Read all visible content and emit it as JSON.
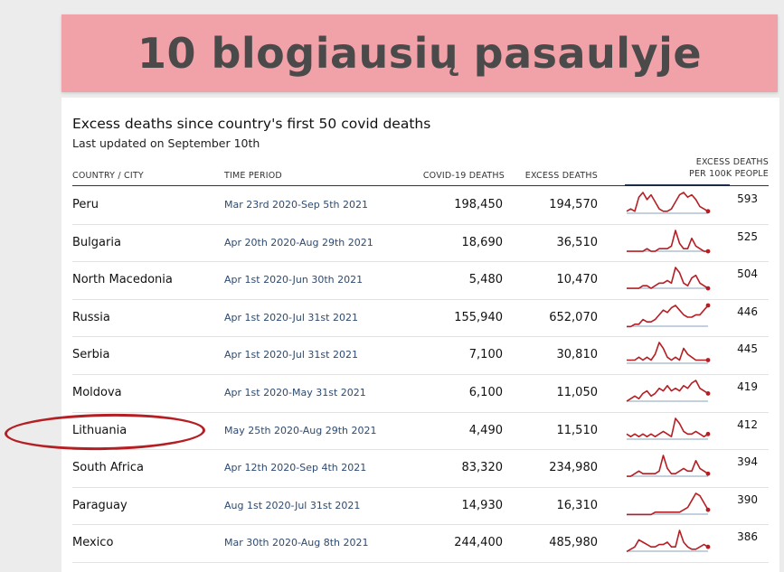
{
  "banner": {
    "title": "10 blogiausių pasaulyje"
  },
  "chart_data": {
    "type": "table",
    "title": "Excess deaths since country's first 50 covid deaths",
    "subtitle": "Last updated on September 10th",
    "columns": [
      "COUNTRY / CITY",
      "TIME PERIOD",
      "COVID-19 DEATHS",
      "EXCESS DEATHS",
      "EXCESS DEATHS PER 100K PEOPLE"
    ],
    "per100k_header": [
      "EXCESS DEATHS",
      "PER 100K PEOPLE"
    ],
    "rows": [
      {
        "country": "Peru",
        "period": "Mar 23rd 2020-Sep 5th 2021",
        "covid": "198,450",
        "excess": "194,570",
        "per100k": "593",
        "trend": [
          2,
          3,
          2,
          8,
          10,
          7,
          9,
          6,
          3,
          2,
          2,
          3,
          6,
          9,
          10,
          8,
          9,
          7,
          4,
          3,
          2
        ]
      },
      {
        "country": "Bulgaria",
        "period": "Apr 20th 2020-Aug 29th 2021",
        "covid": "18,690",
        "excess": "36,510",
        "per100k": "525",
        "trend": [
          1,
          1,
          1,
          1,
          1,
          2,
          1,
          1,
          2,
          2,
          2,
          3,
          9,
          4,
          2,
          2,
          6,
          3,
          2,
          1,
          1
        ]
      },
      {
        "country": "North Macedonia",
        "period": "Apr 1st 2020-Jun 30th 2021",
        "covid": "5,480",
        "excess": "10,470",
        "per100k": "504",
        "trend": [
          1,
          1,
          1,
          1,
          2,
          2,
          1,
          2,
          3,
          3,
          4,
          3,
          9,
          7,
          3,
          2,
          5,
          6,
          3,
          2,
          1
        ]
      },
      {
        "country": "Russia",
        "period": "Apr 1st 2020-Jul 31st 2021",
        "covid": "155,940",
        "excess": "652,070",
        "per100k": "446",
        "trend": [
          1,
          1,
          2,
          2,
          4,
          3,
          3,
          4,
          6,
          8,
          7,
          9,
          10,
          8,
          6,
          5,
          5,
          6,
          6,
          8,
          10
        ]
      },
      {
        "country": "Serbia",
        "period": "Apr 1st 2020-Jul 31st 2021",
        "covid": "7,100",
        "excess": "30,810",
        "per100k": "445",
        "trend": [
          2,
          2,
          2,
          3,
          2,
          3,
          2,
          4,
          8,
          6,
          3,
          2,
          3,
          2,
          6,
          4,
          3,
          2,
          2,
          2,
          2
        ]
      },
      {
        "country": "Moldova",
        "period": "Apr 1st 2020-May 31st 2021",
        "covid": "6,100",
        "excess": "11,050",
        "per100k": "419",
        "trend": [
          1,
          2,
          3,
          2,
          4,
          5,
          3,
          4,
          6,
          5,
          7,
          5,
          6,
          5,
          7,
          6,
          8,
          9,
          6,
          5,
          4
        ]
      },
      {
        "country": "Lithuania",
        "period": "May 25th 2020-Aug 29th 2021",
        "covid": "4,490",
        "excess": "11,510",
        "per100k": "412",
        "trend": [
          3,
          2,
          3,
          2,
          3,
          2,
          3,
          2,
          3,
          4,
          3,
          2,
          9,
          7,
          4,
          3,
          3,
          4,
          3,
          2,
          3
        ]
      },
      {
        "country": "South Africa",
        "period": "Apr 12th 2020-Sep 4th 2021",
        "covid": "83,320",
        "excess": "234,980",
        "per100k": "394",
        "trend": [
          1,
          1,
          2,
          3,
          2,
          2,
          2,
          2,
          3,
          9,
          4,
          2,
          2,
          3,
          4,
          3,
          3,
          7,
          4,
          3,
          2
        ]
      },
      {
        "country": "Paraguay",
        "period": "Aug 1st 2020-Jul 31st 2021",
        "covid": "14,930",
        "excess": "16,310",
        "per100k": "390",
        "trend": [
          1,
          1,
          1,
          1,
          1,
          1,
          1,
          2,
          2,
          2,
          2,
          2,
          2,
          2,
          3,
          4,
          7,
          10,
          9,
          6,
          3
        ]
      },
      {
        "country": "Mexico",
        "period": "Mar 30th 2020-Aug 8th 2021",
        "covid": "244,400",
        "excess": "485,980",
        "per100k": "386",
        "trend": [
          1,
          2,
          3,
          6,
          5,
          4,
          3,
          3,
          4,
          4,
          5,
          3,
          3,
          10,
          5,
          3,
          2,
          2,
          3,
          4,
          3
        ]
      }
    ]
  },
  "colors": {
    "accent_red": "#b51f24",
    "banner_pink": "#f1a2a9",
    "period_blue": "#2d4a70",
    "baseline": "#8aa0b8"
  }
}
